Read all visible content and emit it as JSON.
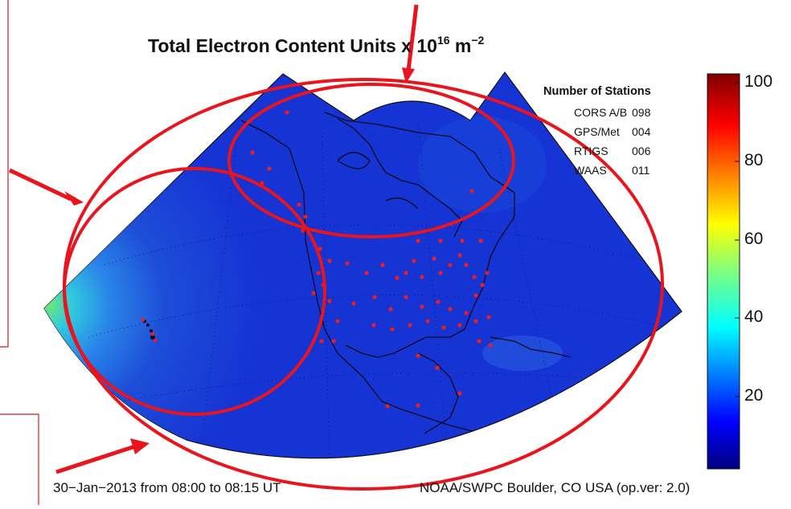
{
  "title": {
    "prefix": "Total Electron Content Units x 10",
    "exp1": "16",
    "unit": " m",
    "exp2": "−2"
  },
  "stations": {
    "header": "Number of Stations",
    "rows": [
      {
        "name": "CORS A/B",
        "count": "098"
      },
      {
        "name": "GPS/Met",
        "count": "004"
      },
      {
        "name": "RTIGS",
        "count": "006"
      },
      {
        "name": "WAAS",
        "count": "011"
      }
    ]
  },
  "colorbar": {
    "ticks": [
      "100",
      "80",
      "60",
      "40",
      "20"
    ],
    "tick_values": [
      100,
      80,
      60,
      40,
      20
    ],
    "range": [
      0,
      100
    ],
    "colormap": "jet"
  },
  "footer": {
    "left": "30−Jan−2013 from 08:00 to 08:15 UT",
    "right": "NOAA/SWPC Boulder, CO USA (op.ver: 2.0)"
  },
  "colors": {
    "map_background": "#1432d2",
    "annotation_red": "#e8141e",
    "station_dot": "#e81e24",
    "coastline": "#0a0a1e"
  }
}
